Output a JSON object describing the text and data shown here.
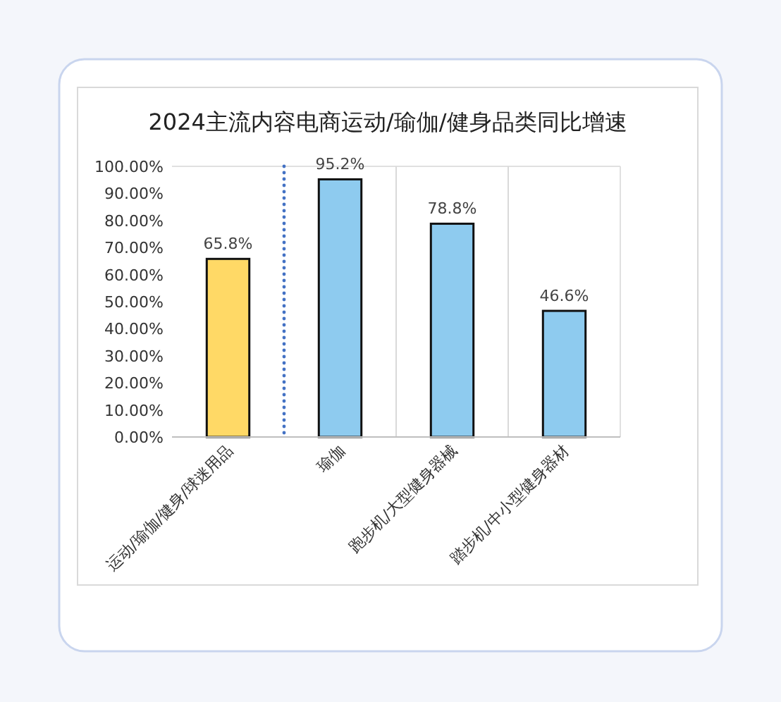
{
  "chart_data": {
    "type": "bar",
    "title": "2024主流内容电商运动/瑜伽/健身品类同比增速",
    "categories": [
      "运动/瑜伽/健身/球迷用品",
      "瑜伽",
      "跑步机/大型健身器械",
      "踏步机/中小型健身器材"
    ],
    "values": [
      65.8,
      95.2,
      78.8,
      46.6
    ],
    "colors": [
      "#ffd966",
      "#8ecbef",
      "#8ecbef",
      "#8ecbef"
    ],
    "value_labels": [
      "65.8%",
      "95.2%",
      "78.8%",
      "46.6%"
    ],
    "ylim": [
      0,
      100
    ],
    "yticks": [
      {
        "value": 0,
        "label": "0.00%"
      },
      {
        "value": 10,
        "label": "10.00%"
      },
      {
        "value": 20,
        "label": "20.00%"
      },
      {
        "value": 30,
        "label": "30.00%"
      },
      {
        "value": 40,
        "label": "40.00%"
      },
      {
        "value": 50,
        "label": "50.00%"
      },
      {
        "value": 60,
        "label": "60.00%"
      },
      {
        "value": 70,
        "label": "70.00%"
      },
      {
        "value": 80,
        "label": "80.00%"
      },
      {
        "value": 90,
        "label": "90.00%"
      },
      {
        "value": 100,
        "label": "100.00%"
      }
    ],
    "grid": "x"
  }
}
